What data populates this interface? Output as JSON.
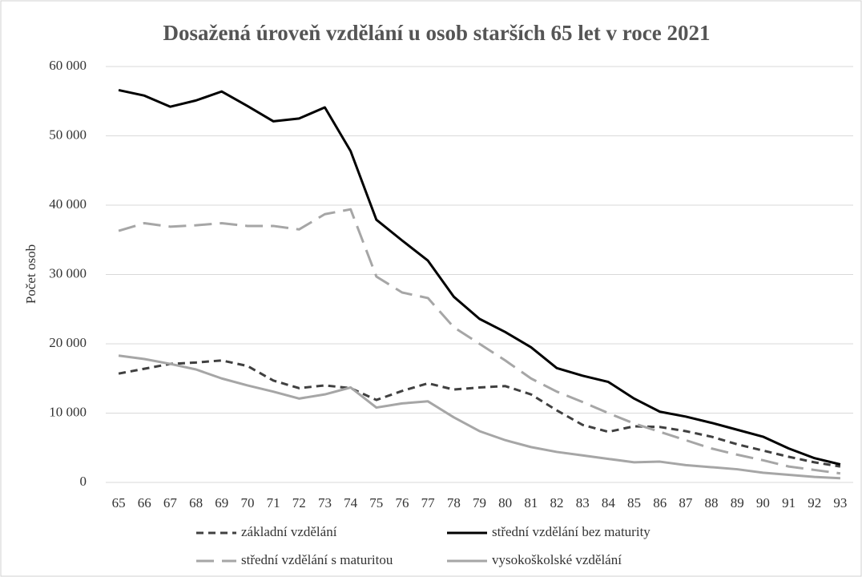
{
  "chart_data": {
    "type": "line",
    "title": "Dosažená úroveň vzdělání u osob starších 65 let v roce 2021",
    "y_label": "Počet osob",
    "categories": [
      "65",
      "66",
      "67",
      "68",
      "69",
      "70",
      "71",
      "72",
      "73",
      "74",
      "75",
      "76",
      "77",
      "78",
      "79",
      "80",
      "81",
      "82",
      "83",
      "84",
      "85",
      "86",
      "87",
      "88",
      "89",
      "90",
      "91",
      "92",
      "93"
    ],
    "series": [
      {
        "name": "základní vzdělání",
        "color": "#404040",
        "dash": "9 6",
        "width": 3,
        "values": [
          15700,
          16400,
          17100,
          17300,
          17600,
          16800,
          14700,
          13600,
          14000,
          13600,
          11900,
          13200,
          14300,
          13400,
          13700,
          13900,
          12700,
          10400,
          8300,
          7300,
          8100,
          8000,
          7400,
          6600,
          5500,
          4600,
          3700,
          2900,
          2300
        ]
      },
      {
        "name": "střední vzdělání bez maturity",
        "color": "#000000",
        "dash": "none",
        "width": 3,
        "values": [
          56600,
          55800,
          54200,
          55100,
          56400,
          54300,
          52100,
          52500,
          54100,
          47800,
          37900,
          34900,
          32000,
          26800,
          23600,
          21700,
          19500,
          16500,
          15400,
          14500,
          12100,
          10200,
          9500,
          8600,
          7600,
          6600,
          4900,
          3500,
          2600
        ]
      },
      {
        "name": "střední vzdělání s maturitou",
        "color": "#a6a6a6",
        "dash": "22 10",
        "width": 3,
        "values": [
          36300,
          37400,
          36900,
          37100,
          37400,
          37000,
          37000,
          36500,
          38700,
          39400,
          29700,
          27400,
          26600,
          22400,
          20000,
          17600,
          15000,
          13100,
          11600,
          10000,
          8500,
          7300,
          6100,
          4900,
          4000,
          3200,
          2300,
          1800,
          1300
        ]
      },
      {
        "name": "vysokoškolské vzdělání",
        "color": "#a6a6a6",
        "dash": "none",
        "width": 3,
        "values": [
          18300,
          17800,
          17100,
          16300,
          15000,
          14000,
          13100,
          12100,
          12700,
          13700,
          10800,
          11400,
          11700,
          9400,
          7400,
          6100,
          5100,
          4400,
          3900,
          3400,
          2900,
          3000,
          2500,
          2200,
          1900,
          1400,
          1100,
          800,
          600
        ]
      }
    ],
    "ylim": [
      0,
      60000
    ],
    "yticks": [
      0,
      {
        "value": 10000,
        "label": "10 000"
      },
      {
        "value": 20000,
        "label": "20 000"
      },
      {
        "value": 30000,
        "label": "30 000"
      },
      {
        "value": 40000,
        "label": "40 000"
      },
      {
        "value": 50000,
        "label": "50 000"
      },
      {
        "value": 60000,
        "label": "60 000"
      }
    ],
    "grid": true
  }
}
